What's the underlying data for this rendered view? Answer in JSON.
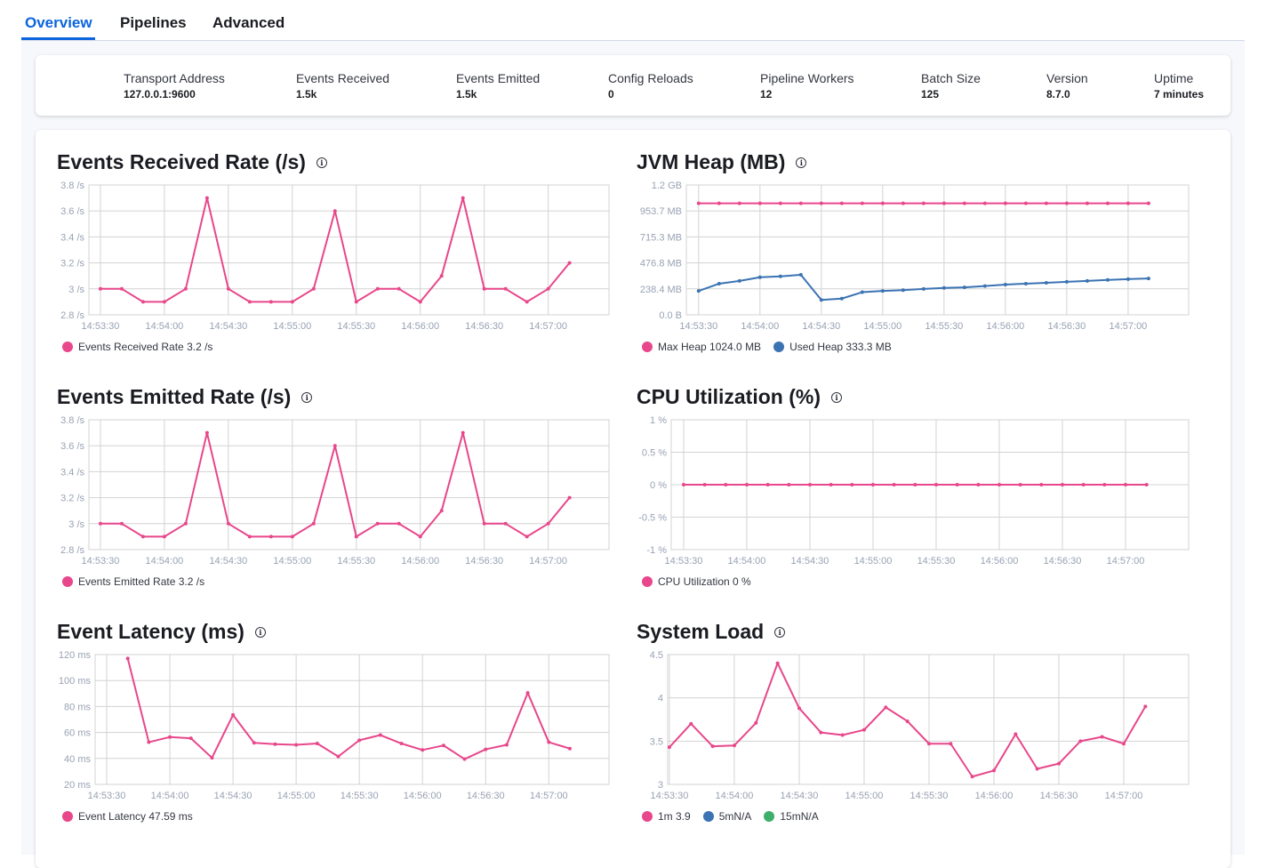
{
  "tabs": [
    {
      "label": "Overview",
      "active": true
    },
    {
      "label": "Pipelines",
      "active": false
    },
    {
      "label": "Advanced",
      "active": false
    }
  ],
  "stats": [
    {
      "label": "Transport Address",
      "value": "127.0.0.1:9600"
    },
    {
      "label": "Events Received",
      "value": "1.5k"
    },
    {
      "label": "Events Emitted",
      "value": "1.5k"
    },
    {
      "label": "Config Reloads",
      "value": "0"
    },
    {
      "label": "Pipeline Workers",
      "value": "12"
    },
    {
      "label": "Batch Size",
      "value": "125"
    },
    {
      "label": "Version",
      "value": "8.7.0"
    },
    {
      "label": "Uptime",
      "value": "7 minutes"
    }
  ],
  "colors": {
    "pink": "#e8478b",
    "blue": "#3b73b3",
    "green": "#3fae6a",
    "accent": "#0b64dd"
  },
  "chart_data": [
    {
      "id": "received",
      "type": "line",
      "title": "Events Received Rate (/s)",
      "y_ticks": [
        "3.8 /s",
        "3.6 /s",
        "3.4 /s",
        "3.2 /s",
        "3 /s",
        "2.8 /s"
      ],
      "ylim": [
        2.8,
        3.8
      ],
      "x_ticks": [
        "14:53:30",
        "14:54:00",
        "14:54:30",
        "14:55:00",
        "14:55:30",
        "14:56:00",
        "14:56:30",
        "14:57:00"
      ],
      "grid": true,
      "series": [
        {
          "name": "Events Received Rate",
          "legend": "Events Received Rate 3.2 /s",
          "color": "#e8478b",
          "start": "14:53:30",
          "step_s": 10,
          "values": [
            3,
            3,
            2.9,
            2.9,
            3,
            3.7,
            3,
            2.9,
            2.9,
            2.9,
            3,
            3.6,
            2.9,
            3,
            3,
            2.9,
            3.1,
            3.7,
            3,
            3,
            2.9,
            3,
            3.2
          ]
        }
      ]
    },
    {
      "id": "jvm",
      "type": "line",
      "title": "JVM Heap (MB)",
      "y_ticks": [
        "1.2 GB",
        "953.7 MB",
        "715.3 MB",
        "476.8 MB",
        "238.4 MB",
        "0.0 B"
      ],
      "ylim": [
        0,
        1192.1
      ],
      "x_ticks": [
        "14:53:30",
        "14:54:00",
        "14:54:30",
        "14:55:00",
        "14:55:30",
        "14:56:00",
        "14:56:30",
        "14:57:00"
      ],
      "grid": true,
      "series": [
        {
          "name": "Max Heap",
          "legend": "Max Heap 1024.0 MB",
          "color": "#e8478b",
          "start": "14:53:30",
          "step_s": 10,
          "values": [
            1024,
            1024,
            1024,
            1024,
            1024,
            1024,
            1024,
            1024,
            1024,
            1024,
            1024,
            1024,
            1024,
            1024,
            1024,
            1024,
            1024,
            1024,
            1024,
            1024,
            1024,
            1024,
            1024
          ]
        },
        {
          "name": "Used Heap",
          "legend": "Used Heap 333.3 MB",
          "color": "#3b73b3",
          "start": "14:53:30",
          "step_s": 10,
          "values": [
            219,
            286,
            311,
            345,
            353,
            367,
            137,
            149,
            208,
            219,
            227,
            238,
            247,
            252,
            264,
            278,
            286,
            294,
            303,
            311,
            320,
            328,
            333.3
          ]
        }
      ]
    },
    {
      "id": "emitted",
      "type": "line",
      "title": "Events Emitted Rate (/s)",
      "y_ticks": [
        "3.8 /s",
        "3.6 /s",
        "3.4 /s",
        "3.2 /s",
        "3 /s",
        "2.8 /s"
      ],
      "ylim": [
        2.8,
        3.8
      ],
      "x_ticks": [
        "14:53:30",
        "14:54:00",
        "14:54:30",
        "14:55:00",
        "14:55:30",
        "14:56:00",
        "14:56:30",
        "14:57:00"
      ],
      "grid": true,
      "series": [
        {
          "name": "Events Emitted Rate",
          "legend": "Events Emitted Rate 3.2 /s",
          "color": "#e8478b",
          "start": "14:53:30",
          "step_s": 10,
          "values": [
            3,
            3,
            2.9,
            2.9,
            3,
            3.7,
            3,
            2.9,
            2.9,
            2.9,
            3,
            3.6,
            2.9,
            3,
            3,
            2.9,
            3.1,
            3.7,
            3,
            3,
            2.9,
            3,
            3.2
          ]
        }
      ]
    },
    {
      "id": "cpu",
      "type": "line",
      "title": "CPU Utilization (%)",
      "y_ticks": [
        "1 %",
        "0.5 %",
        "0 %",
        "-0.5 %",
        "-1 %"
      ],
      "ylim": [
        -1,
        1
      ],
      "x_ticks": [
        "14:53:30",
        "14:54:00",
        "14:54:30",
        "14:55:00",
        "14:55:30",
        "14:56:00",
        "14:56:30",
        "14:57:00"
      ],
      "grid": true,
      "series": [
        {
          "name": "CPU Utilization",
          "legend": "CPU Utilization 0 %",
          "color": "#e8478b",
          "start": "14:53:30",
          "step_s": 10,
          "values": [
            0,
            0,
            0,
            0,
            0,
            0,
            0,
            0,
            0,
            0,
            0,
            0,
            0,
            0,
            0,
            0,
            0,
            0,
            0,
            0,
            0,
            0,
            0
          ]
        }
      ]
    },
    {
      "id": "latency",
      "type": "line",
      "title": "Event Latency (ms)",
      "y_ticks": [
        "120 ms",
        "100 ms",
        "80 ms",
        "60 ms",
        "40 ms",
        "20 ms"
      ],
      "ylim": [
        20,
        120
      ],
      "x_ticks": [
        "14:53:30",
        "14:54:00",
        "14:54:30",
        "14:55:00",
        "14:55:30",
        "14:56:00",
        "14:56:30",
        "14:57:00"
      ],
      "grid": true,
      "series": [
        {
          "name": "Event Latency",
          "legend": "Event Latency 47.59 ms",
          "color": "#e8478b",
          "start": "14:53:40",
          "step_s": 10,
          "values": [
            117,
            52.5,
            56.5,
            55.5,
            40.5,
            73.5,
            52,
            51,
            50.5,
            51.5,
            41.5,
            54,
            58,
            51.5,
            46.5,
            50,
            39.5,
            47,
            50.5,
            90.5,
            52.5,
            47.59
          ]
        }
      ]
    },
    {
      "id": "load",
      "type": "line",
      "title": "System Load",
      "y_ticks": [
        "4.5",
        "4",
        "3.5",
        "3"
      ],
      "ylim": [
        3,
        4.5
      ],
      "x_ticks": [
        "14:53:30",
        "14:54:00",
        "14:54:30",
        "14:55:00",
        "14:55:30",
        "14:56:00",
        "14:56:30",
        "14:57:00"
      ],
      "grid": true,
      "series": [
        {
          "name": "1m",
          "legend": "1m 3.9",
          "color": "#e8478b",
          "start": "14:53:30",
          "step_s": 10,
          "values": [
            3.43,
            3.7,
            3.44,
            3.45,
            3.71,
            4.4,
            3.88,
            3.6,
            3.57,
            3.63,
            3.89,
            3.73,
            3.47,
            3.47,
            3.09,
            3.16,
            3.58,
            3.18,
            3.24,
            3.5,
            3.55,
            3.47,
            3.9
          ]
        },
        {
          "name": "5m",
          "legend": "5mN/A",
          "color": "#3b73b3",
          "values": []
        },
        {
          "name": "15m",
          "legend": "15mN/A",
          "color": "#3fae6a",
          "values": []
        }
      ]
    }
  ]
}
